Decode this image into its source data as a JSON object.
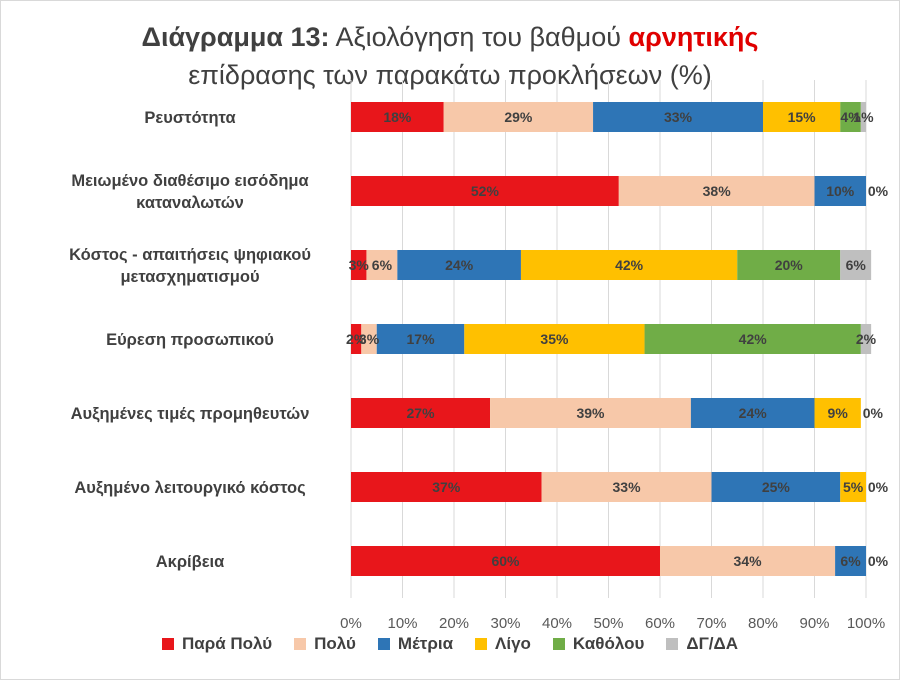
{
  "title": {
    "lead": "Διάγραμμα 13:",
    "part1": " Αξιολόγηση του βαθμού ",
    "highlight": "αρνητικής",
    "line2": "επίδρασης των παρακάτω προκλήσεων (%)"
  },
  "chart_data": {
    "type": "bar",
    "orientation": "horizontal",
    "stacked": true,
    "categories": [
      [
        "Ρευστότητα"
      ],
      [
        "Μειωμένο διαθέσιμο εισόδημα",
        "καταναλωτών"
      ],
      [
        "Κόστος - απαιτήσεις ψηφιακού",
        "μετασχηματισμού"
      ],
      [
        "Εύρεση προσωπικού"
      ],
      [
        "Αυξημένες τιμές προμηθευτών"
      ],
      [
        "Αυξημένο λειτουργικό κόστος"
      ],
      [
        "Ακρίβεια"
      ]
    ],
    "series": [
      {
        "name": "Παρά Πολύ",
        "color": "#e8161b",
        "values": [
          18,
          52,
          3,
          2,
          27,
          37,
          60
        ]
      },
      {
        "name": "Πολύ",
        "color": "#f7c8a9",
        "values": [
          29,
          38,
          6,
          3,
          39,
          33,
          34
        ]
      },
      {
        "name": "Μέτρια",
        "color": "#2e75b6",
        "values": [
          33,
          10,
          24,
          17,
          24,
          25,
          6
        ]
      },
      {
        "name": "Λίγο",
        "color": "#ffc000",
        "values": [
          15,
          0,
          42,
          35,
          9,
          5,
          0
        ]
      },
      {
        "name": "Καθόλου",
        "color": "#70ad47",
        "values": [
          4,
          0,
          20,
          42,
          0,
          0,
          0
        ]
      },
      {
        "name": "ΔΓ/ΔΑ",
        "color": "#bfbfbf",
        "values": [
          1,
          0,
          6,
          2,
          0,
          0,
          0
        ]
      }
    ],
    "label_suffix": "%",
    "x_ticks": [
      "0%",
      "10%",
      "20%",
      "30%",
      "40%",
      "50%",
      "60%",
      "70%",
      "80%",
      "90%",
      "100%"
    ],
    "xlim": [
      0,
      100
    ],
    "grid": true,
    "legend_position": "bottom"
  }
}
